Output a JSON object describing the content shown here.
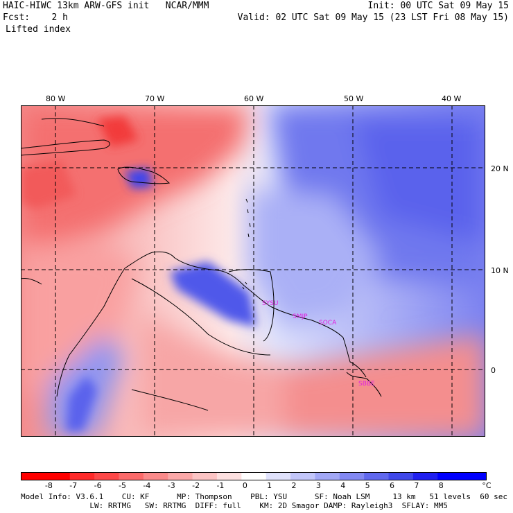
{
  "header": {
    "line1_left": "HAIC-HIWC 13km ARW-GFS init   NCAR/MMM",
    "line1_right": "Init: 00 UTC Sat 09 May 15",
    "line2_left": "Fcst:    2 h",
    "line2_right": "Valid: 02 UTC Sat 09 May 15 (23 LST Fri 08 May 15)",
    "line3_left": "Lifted index"
  },
  "map": {
    "longitude_labels": [
      "80 W",
      "70 W",
      "60 W",
      "50 W",
      "40 W"
    ],
    "latitude_labels": [
      "20 N",
      "10 N",
      "0"
    ],
    "stations": [
      "SYSU",
      "SMJP",
      "SOCA",
      "SBBE"
    ],
    "colors": {
      "most_negative": "#ff0000",
      "neutral": "#ffffff",
      "most_positive": "#0000ff"
    }
  },
  "colorbar": {
    "labels": [
      "-8",
      "-7",
      "-6",
      "-5",
      "-4",
      "-3",
      "-2",
      "-1",
      "0",
      "1",
      "2",
      "3",
      "4",
      "5",
      "6",
      "7",
      "8"
    ],
    "unit": "°C",
    "colors": [
      "#ff0000",
      "#ff2a2a",
      "#fd4848",
      "#fb6a6a",
      "#fa8a8a",
      "#fba8a8",
      "#fcc4c4",
      "#fde0e0",
      "#ffffff",
      "#e0e2fc",
      "#c2c6fa",
      "#a2a8f6",
      "#8288f2",
      "#6068ee",
      "#4048ea",
      "#2020f0",
      "#0000ff"
    ]
  },
  "footer": {
    "line1": "Model Info: V3.6.1    CU: KF      MP: Thompson    PBL: YSU      SF: Noah LSM     13 km   51 levels  60 sec",
    "line2": "               LW: RRTMG   SW: RRTMG  DIFF: full    KM: 2D Smagor DAMP: Rayleigh3  SFLAY: MM5"
  }
}
